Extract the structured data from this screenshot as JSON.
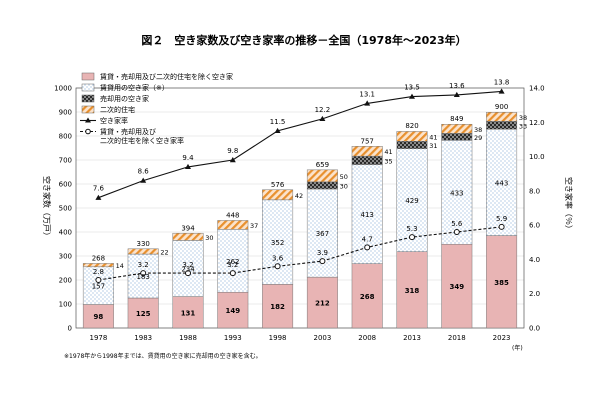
{
  "chart_data": {
    "type": "bar",
    "title": "図２　空き家数及び空き家率の推移－全国（1978年～2023年）",
    "ylabel_left": "空き家数（万戸）",
    "ylabel_right": "空き家率（％）",
    "x_unit": "(年)",
    "footnote": "※1978年から1998年までは、賃貸用の空き家に売却用の空き家を含む。",
    "categories": [
      "1978",
      "1983",
      "1988",
      "1993",
      "1998",
      "2003",
      "2008",
      "2013",
      "2018",
      "2023"
    ],
    "ylim_left": [
      0,
      1000
    ],
    "ylim_right": [
      0,
      14
    ],
    "yticks_left": [
      "0",
      "100",
      "200",
      "300",
      "400",
      "500",
      "600",
      "700",
      "800",
      "900",
      "1000"
    ],
    "yticks_right": [
      "0.0",
      "2.0",
      "4.0",
      "6.0",
      "8.0",
      "10.0",
      "12.0",
      "14.0"
    ],
    "series": [
      {
        "name": "賃貸・売却用及び二次的住宅を除く空き家",
        "kind": "bar",
        "color": "#e8b4b4",
        "values": [
          98,
          125,
          131,
          149,
          182,
          212,
          268,
          318,
          349,
          385
        ]
      },
      {
        "name": "賃貸用の空き家（※）",
        "kind": "bar",
        "color": "#ffffff",
        "values": [
          157,
          183,
          234,
          262,
          352,
          367,
          413,
          429,
          433,
          443
        ]
      },
      {
        "name": "売却用の空き家",
        "kind": "bar",
        "color": "#555555",
        "values": [
          null,
          null,
          null,
          null,
          null,
          30,
          35,
          31,
          29,
          33
        ]
      },
      {
        "name": "二次的住宅",
        "kind": "bar",
        "color": "#f0a868",
        "values": [
          14,
          22,
          30,
          37,
          42,
          50,
          41,
          41,
          38,
          38
        ]
      },
      {
        "name": "空き家率",
        "kind": "line",
        "values": [
          7.6,
          8.6,
          9.4,
          9.8,
          11.5,
          12.2,
          13.1,
          13.5,
          13.6,
          13.8
        ]
      },
      {
        "name": "賃貸・売却用及び\n二次的住宅を除く空き家率",
        "kind": "line-dashed",
        "values": [
          2.8,
          3.2,
          3.2,
          3.2,
          3.6,
          3.9,
          4.7,
          5.3,
          5.6,
          5.9
        ]
      }
    ],
    "totals": [
      268,
      330,
      394,
      448,
      576,
      659,
      757,
      820,
      849,
      900
    ],
    "legend_position": "top-left"
  }
}
